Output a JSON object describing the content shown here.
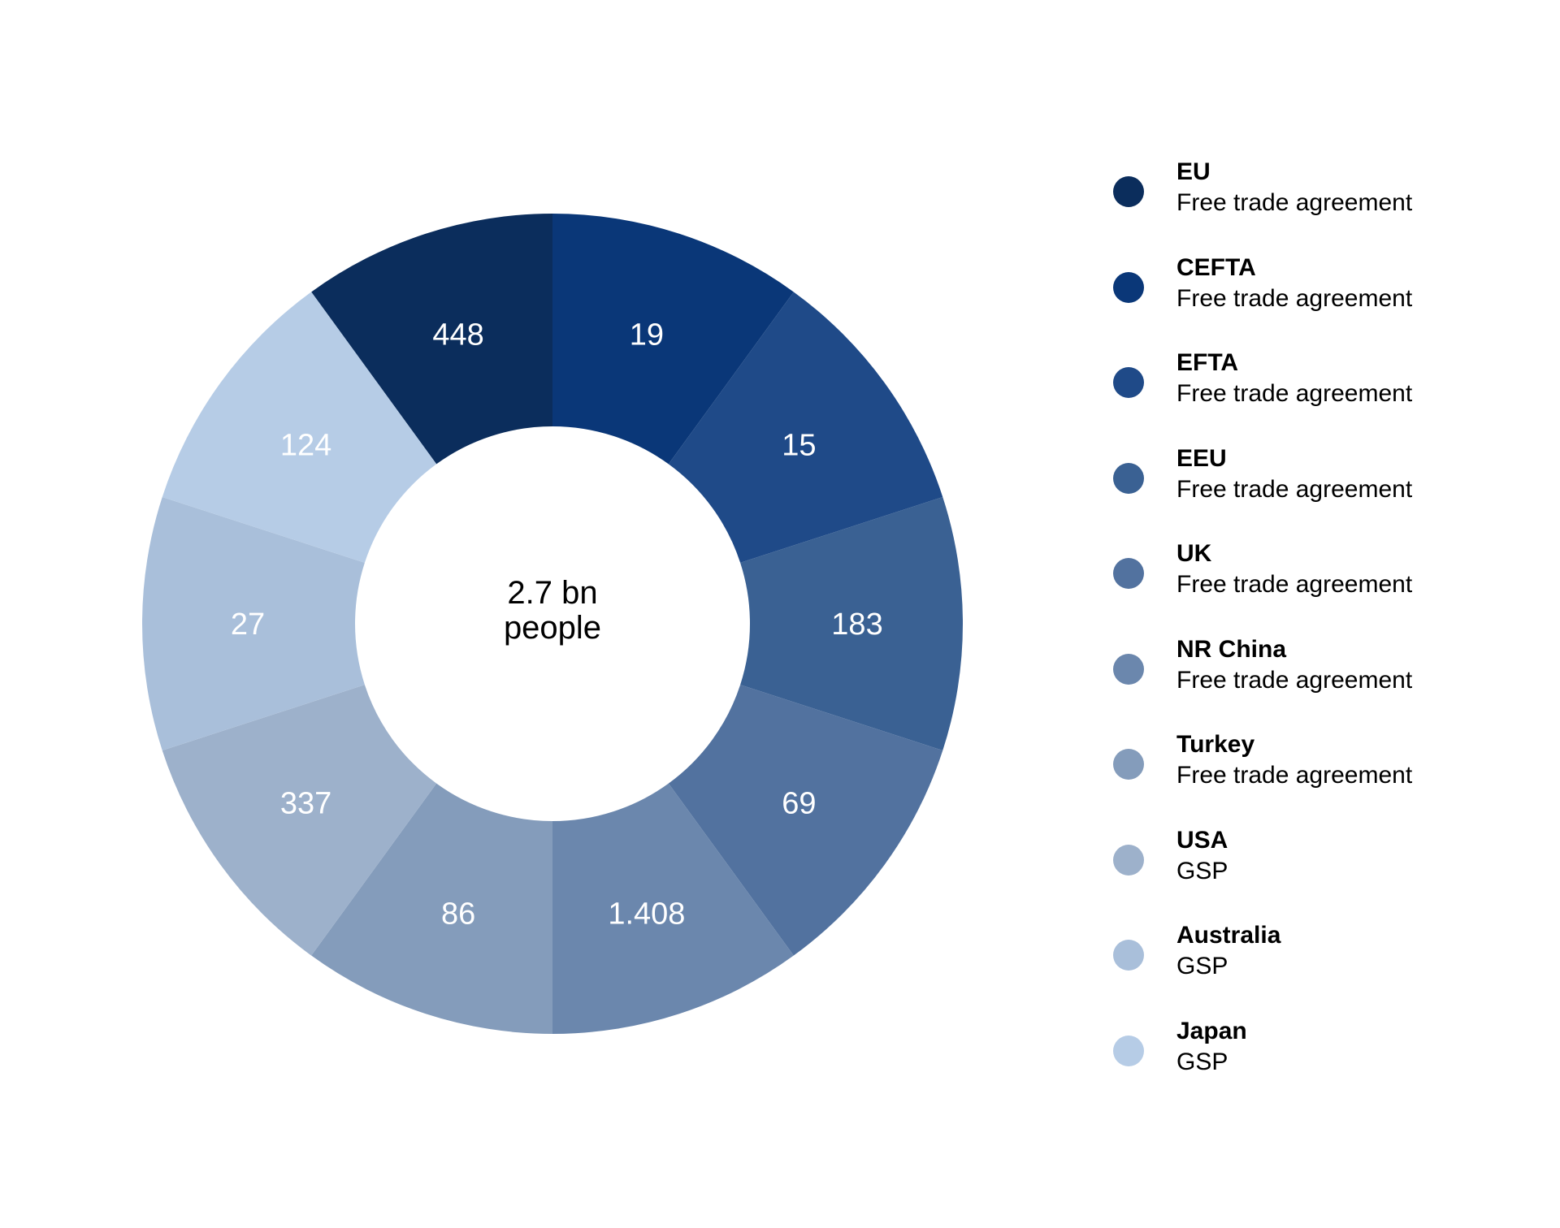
{
  "chart_data": {
    "type": "pie",
    "variant": "donut",
    "center_label": [
      "2.7 bn",
      "people"
    ],
    "slices": [
      {
        "name": "EU",
        "type": "Free trade agreement",
        "label": "448",
        "value": 448,
        "color": "#0b2d5c"
      },
      {
        "name": "CEFTA",
        "type": "Free trade agreement",
        "label": "19",
        "value": 19,
        "color": "#0a3778"
      },
      {
        "name": "EFTA",
        "type": "Free trade agreement",
        "label": "15",
        "value": 15,
        "color": "#1f4a88"
      },
      {
        "name": "EEU",
        "type": "Free trade agreement",
        "label": "183",
        "value": 183,
        "color": "#3a6193"
      },
      {
        "name": "UK",
        "type": "Free trade agreement",
        "label": "69",
        "value": 69,
        "color": "#52729f"
      },
      {
        "name": "NR China",
        "type": "Free trade agreement",
        "label": "1.408",
        "value": 1408,
        "color": "#6b87ad"
      },
      {
        "name": "Turkey",
        "type": "Free trade agreement",
        "label": "86",
        "value": 86,
        "color": "#849cbb"
      },
      {
        "name": "USA",
        "type": "GSP",
        "label": "337",
        "value": 337,
        "color": "#9db1cb"
      },
      {
        "name": "Australia",
        "type": "GSP",
        "label": "27",
        "value": 27,
        "color": "#a9bfda"
      },
      {
        "name": "Japan",
        "type": "GSP",
        "label": "124",
        "value": 124,
        "color": "#b6cce6"
      }
    ],
    "slice_sizing": "equal",
    "legend_position": "right"
  }
}
